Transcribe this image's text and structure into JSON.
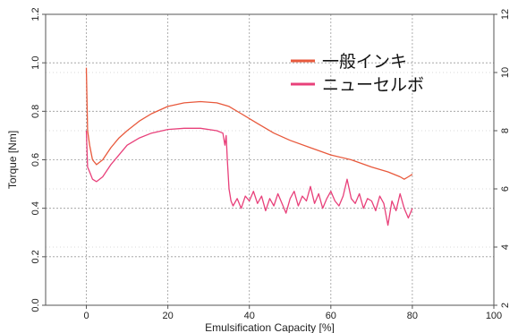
{
  "chart_data": {
    "type": "line",
    "xlabel": "Emulsification Capacity [%]",
    "ylabel": "Torque [Nm]",
    "xlim": [
      -10,
      100
    ],
    "ylim": [
      0,
      1.2
    ],
    "y2lim": [
      2,
      12
    ],
    "xticks": [
      "0",
      "20",
      "40",
      "60",
      "80",
      "100"
    ],
    "yticks": [
      "0.0",
      "0.2",
      "0.4",
      "0.6",
      "0.8",
      "1.0",
      "1.2"
    ],
    "y2ticks": [
      "2",
      "4",
      "6",
      "8",
      "10",
      "12"
    ],
    "grid": true,
    "legend_position": "top-right",
    "series": [
      {
        "name": "一般インキ",
        "color": "#e8593c",
        "x": [
          0,
          0.3,
          0.8,
          1.5,
          2.5,
          4,
          6,
          8,
          10,
          13,
          16,
          20,
          24,
          28,
          32,
          35,
          38,
          42,
          46,
          50,
          55,
          60,
          65,
          70,
          74,
          77,
          78,
          79,
          80
        ],
        "y": [
          0.98,
          0.72,
          0.66,
          0.6,
          0.58,
          0.6,
          0.65,
          0.69,
          0.72,
          0.76,
          0.79,
          0.82,
          0.835,
          0.84,
          0.835,
          0.82,
          0.79,
          0.75,
          0.71,
          0.68,
          0.65,
          0.62,
          0.6,
          0.57,
          0.55,
          0.53,
          0.52,
          0.53,
          0.54
        ]
      },
      {
        "name": "ニューセルボ",
        "color": "#e8407a",
        "x": [
          0,
          0.3,
          0.8,
          1.5,
          2.5,
          4,
          6,
          8,
          10,
          13,
          16,
          20,
          24,
          28,
          32,
          33.5,
          34,
          34.3,
          34.6,
          35,
          35.5,
          36,
          37,
          38,
          39,
          40,
          41,
          42,
          43,
          44,
          45,
          46,
          47,
          48,
          49,
          50,
          51,
          52,
          53,
          54,
          55,
          56,
          57,
          58,
          59,
          60,
          61,
          62,
          63,
          64,
          65,
          66,
          67,
          68,
          69,
          70,
          71,
          72,
          73,
          74,
          75,
          76,
          77,
          78,
          79,
          80
        ],
        "y": [
          0.72,
          0.57,
          0.55,
          0.52,
          0.51,
          0.53,
          0.58,
          0.62,
          0.66,
          0.69,
          0.71,
          0.725,
          0.73,
          0.73,
          0.72,
          0.71,
          0.66,
          0.7,
          0.6,
          0.48,
          0.43,
          0.41,
          0.44,
          0.4,
          0.45,
          0.43,
          0.47,
          0.42,
          0.45,
          0.39,
          0.44,
          0.41,
          0.46,
          0.42,
          0.38,
          0.44,
          0.47,
          0.41,
          0.45,
          0.43,
          0.49,
          0.42,
          0.46,
          0.4,
          0.44,
          0.47,
          0.43,
          0.41,
          0.45,
          0.52,
          0.44,
          0.42,
          0.46,
          0.4,
          0.44,
          0.43,
          0.39,
          0.45,
          0.42,
          0.33,
          0.43,
          0.39,
          0.46,
          0.4,
          0.36,
          0.4
        ]
      }
    ]
  }
}
